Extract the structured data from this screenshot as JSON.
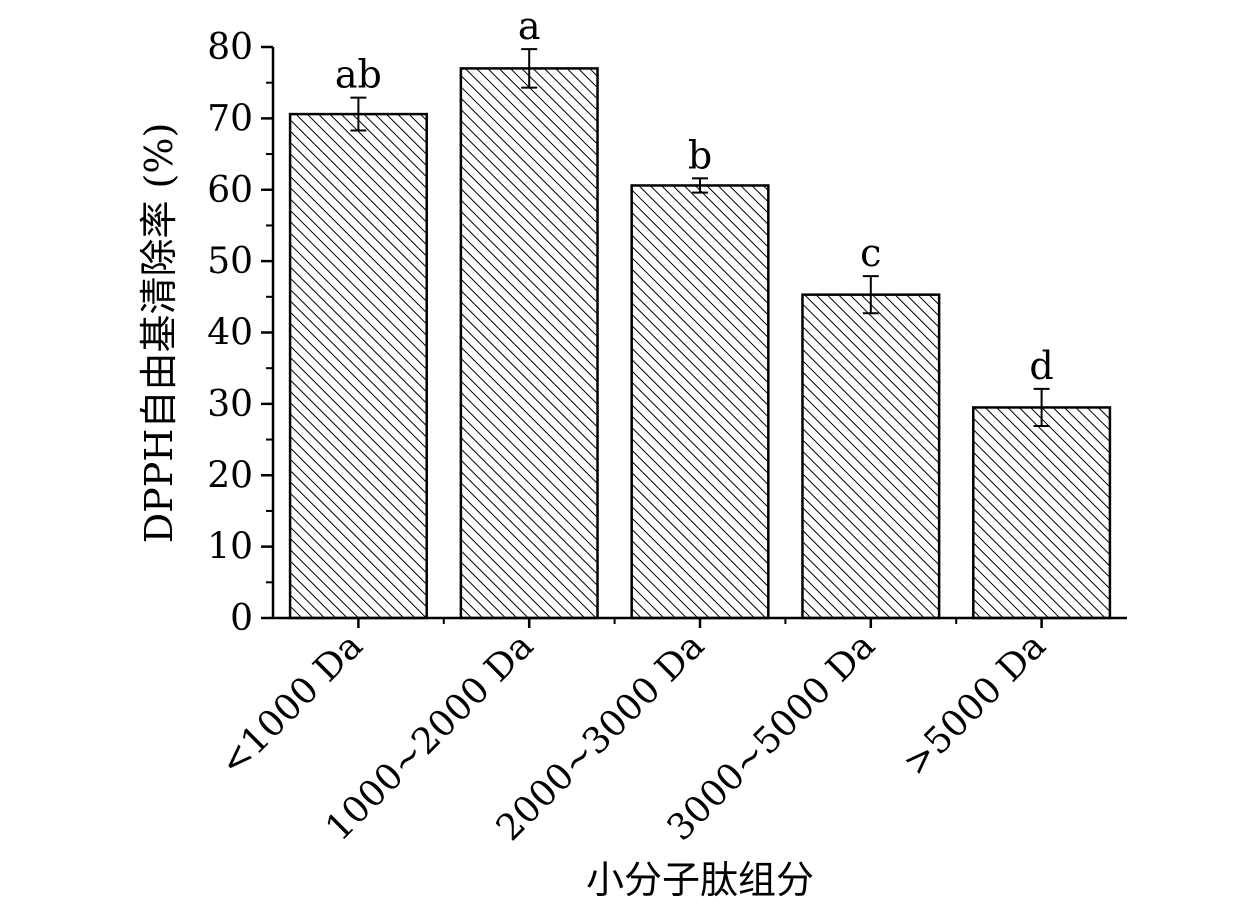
{
  "chart_data": {
    "type": "bar",
    "title": "",
    "xlabel": "小分子肽组分",
    "ylabel": "DPPH自由基清除率 (%)",
    "categories": [
      "<1000 Da",
      "1000~2000 Da",
      "2000~3000 Da",
      "3000~5000 Da",
      ">5000 Da"
    ],
    "values": [
      70.6,
      77.0,
      60.6,
      45.3,
      29.5
    ],
    "errors": [
      2.3,
      2.7,
      1.0,
      2.6,
      2.6
    ],
    "significance": [
      "ab",
      "a",
      "b",
      "c",
      "d"
    ],
    "ylim": [
      0,
      80
    ],
    "yticks": [
      0,
      10,
      20,
      30,
      40,
      50,
      60,
      70,
      80
    ],
    "yticks_minor_step": 5,
    "grid": false,
    "legend": "none",
    "bar_fill": "diagonal hatch",
    "colors": {
      "bar_stroke": "#000000",
      "bar_hatch": "#000000",
      "bar_background": "#ffffff"
    }
  }
}
